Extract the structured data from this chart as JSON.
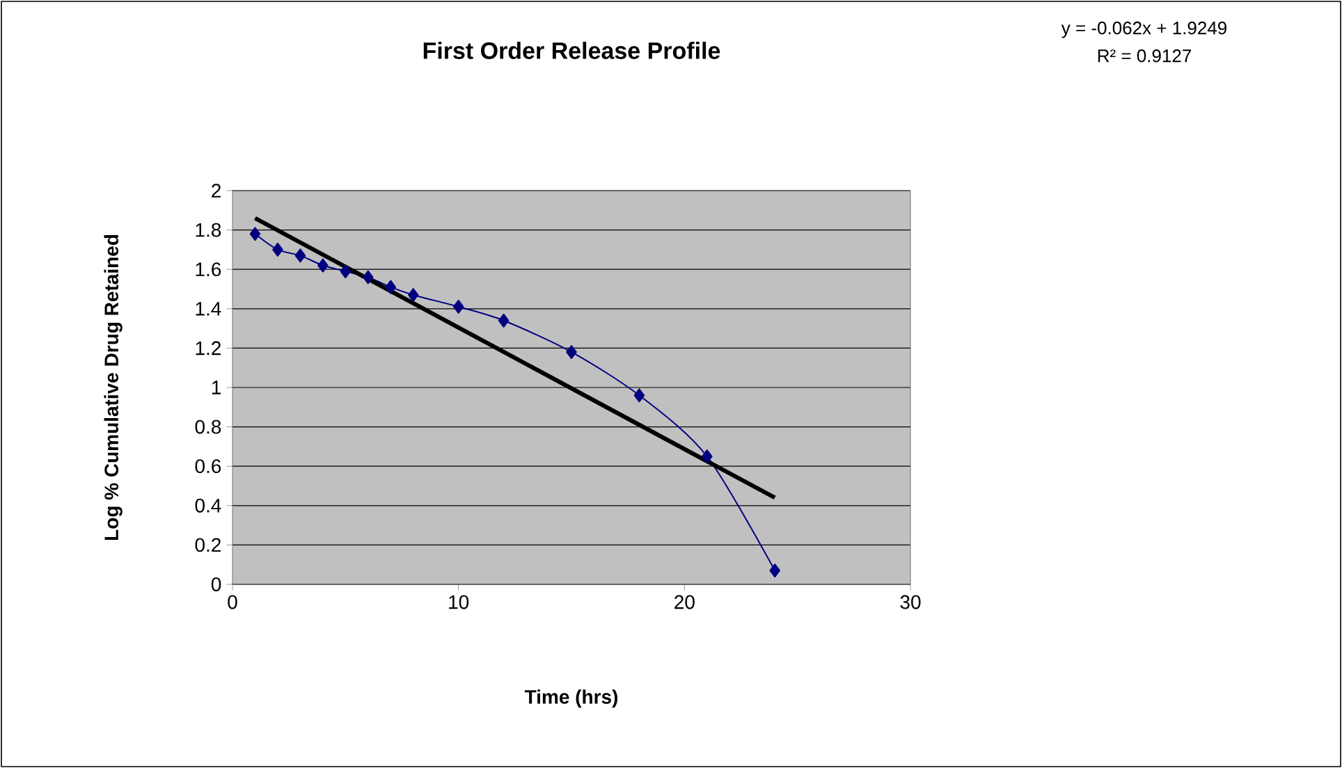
{
  "chart_data": {
    "type": "line",
    "title": "First Order Release Profile",
    "xlabel": "Time (hrs)",
    "ylabel": "Log % Cumulative Drug Retained",
    "annotations": [
      "y = -0.062x + 1.9249",
      "R² = 0.9127"
    ],
    "xlim": [
      0,
      30
    ],
    "xticks": [
      0,
      10,
      20,
      30
    ],
    "ylim": [
      0,
      2
    ],
    "yticks": [
      0,
      {
        "value": 0.2,
        "label": "0.2"
      },
      {
        "value": 0.4,
        "label": "0.4"
      },
      {
        "value": 0.6,
        "label": "0.6"
      },
      {
        "value": 0.8,
        "label": "0.8"
      },
      1,
      {
        "value": 1.2,
        "label": "1.2"
      },
      {
        "value": 1.4,
        "label": "1.4"
      },
      {
        "value": 1.6,
        "label": "1.6"
      },
      {
        "value": 1.8,
        "label": "1.8"
      },
      2
    ],
    "grid": "y",
    "marker": "diamond",
    "series": [
      {
        "color": "#000080",
        "x": [
          1,
          2,
          3,
          4,
          5,
          6,
          7,
          8,
          10,
          12,
          15,
          18,
          21,
          24
        ],
        "values": [
          1.78,
          1.7,
          1.67,
          1.62,
          1.59,
          1.56,
          1.51,
          1.47,
          1.41,
          1.34,
          1.18,
          0.96,
          0.65,
          0.07
        ]
      },
      {
        "type": "line",
        "color": "#000000",
        "marker": "none",
        "x": [
          1,
          24
        ],
        "values": [
          1.86,
          0.44
        ]
      }
    ]
  }
}
